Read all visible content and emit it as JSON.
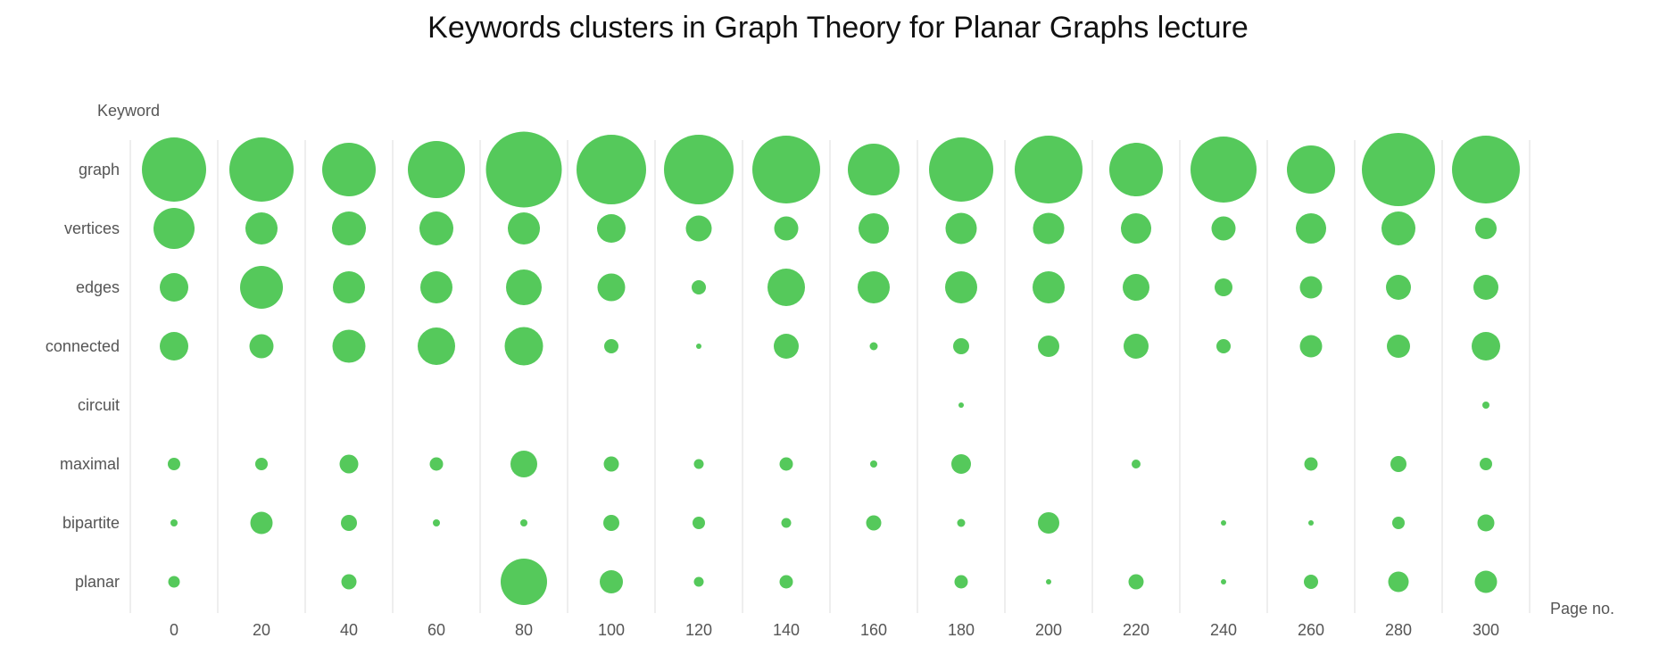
{
  "chart_data": {
    "type": "scatter",
    "title": "Keywords clusters in Graph Theory for Planar Graphs lecture",
    "xlabel": "Page no.",
    "ylabel": "Keyword",
    "x": [
      0,
      20,
      40,
      60,
      80,
      100,
      120,
      140,
      160,
      180,
      200,
      220,
      240,
      260,
      280,
      300
    ],
    "categories": [
      "graph",
      "vertices",
      "edges",
      "connected",
      "circuit",
      "maximal",
      "bipartite",
      "planar"
    ],
    "series": [
      {
        "name": "graph",
        "values": [
          72,
          72,
          60,
          64,
          85,
          78,
          78,
          76,
          58,
          72,
          76,
          60,
          74,
          54,
          82,
          76
        ]
      },
      {
        "name": "vertices",
        "values": [
          46,
          36,
          38,
          38,
          36,
          32,
          29,
          27,
          34,
          35,
          35,
          34,
          27,
          34,
          38,
          24
        ]
      },
      {
        "name": "edges",
        "values": [
          32,
          48,
          36,
          36,
          40,
          31,
          16,
          42,
          36,
          36,
          36,
          30,
          20,
          25,
          28,
          28
        ]
      },
      {
        "name": "connected",
        "values": [
          32,
          27,
          37,
          42,
          43,
          16,
          6,
          28,
          9,
          18,
          24,
          28,
          16,
          25,
          26,
          32
        ]
      },
      {
        "name": "circuit",
        "values": [
          0,
          0,
          0,
          0,
          0,
          0,
          0,
          0,
          0,
          6,
          0,
          0,
          0,
          0,
          0,
          8
        ]
      },
      {
        "name": "maximal",
        "values": [
          14,
          14,
          21,
          15,
          30,
          17,
          11,
          15,
          8,
          22,
          0,
          10,
          0,
          15,
          18,
          14
        ]
      },
      {
        "name": "bipartite",
        "values": [
          8,
          25,
          18,
          8,
          8,
          18,
          14,
          11,
          17,
          9,
          24,
          0,
          6,
          6,
          14,
          19
        ]
      },
      {
        "name": "planar",
        "values": [
          13,
          0,
          17,
          0,
          52,
          26,
          11,
          15,
          0,
          15,
          6,
          17,
          6,
          16,
          23,
          25
        ]
      }
    ],
    "value_note": "bubble diameters read from image; 0 = no bubble",
    "grid": "vertical",
    "color": "#55c95b",
    "grid_color": "#e9e9e9",
    "text_color": "#555555"
  }
}
